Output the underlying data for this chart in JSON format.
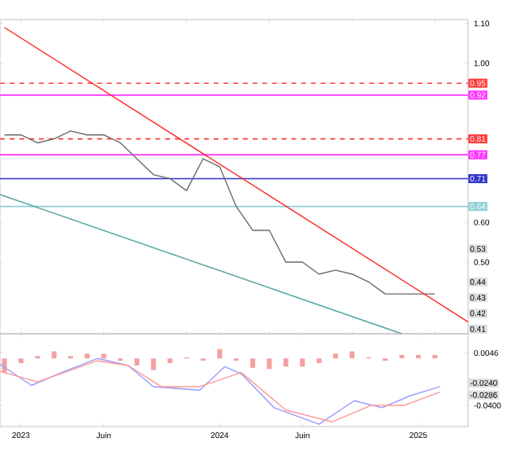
{
  "chart_data": [
    {
      "type": "line",
      "xlim": [
        "2022-11-23",
        "2025-04-01"
      ],
      "ylim": [
        0.32,
        1.11
      ],
      "yticks": [
        {
          "value": 1.1,
          "label": "1.10"
        },
        {
          "value": 1.0,
          "label": "1.00"
        },
        {
          "value": 0.6,
          "label": "0.60"
        },
        {
          "value": 0.5,
          "label": "0.50"
        }
      ],
      "tick_labels": "y",
      "series": [
        {
          "color": "#6b6b6b",
          "x": [
            "2022-12",
            "2023-01",
            "2023-02",
            "2023-03",
            "2023-04",
            "2023-05",
            "2023-06",
            "2023-07",
            "2023-08",
            "2023-09",
            "2023-10",
            "2023-11",
            "2023-12",
            "2024-01",
            "2024-02",
            "2024-03",
            "2024-04",
            "2024-05",
            "2024-06",
            "2024-07",
            "2024-08",
            "2024-09",
            "2024-10",
            "2024-11",
            "2024-12",
            "2025-01",
            "2025-02"
          ],
          "values": [
            0.82,
            0.82,
            0.8,
            0.81,
            0.83,
            0.82,
            0.82,
            0.8,
            0.76,
            0.72,
            0.71,
            0.68,
            0.76,
            0.74,
            0.64,
            0.58,
            0.58,
            0.5,
            0.5,
            0.47,
            0.48,
            0.47,
            0.45,
            0.42,
            0.42,
            0.42,
            0.42
          ]
        },
        {
          "color": "#ff2020",
          "x": [
            "2022-12",
            "2025-04"
          ],
          "values": [
            1.09,
            0.35
          ]
        },
        {
          "color": "#4fa3a0",
          "x": [
            "2022-11-23",
            "2024-12"
          ],
          "values": [
            0.67,
            0.32
          ]
        }
      ],
      "ref_lines": [
        {
          "axis": "y",
          "value": 0.95,
          "label": "0.95",
          "color": "#ff3b3b",
          "line_style": "dashed"
        },
        {
          "axis": "y",
          "value": 0.92,
          "label": "0.92",
          "color": "#ff33ff",
          "line_style": "solid"
        },
        {
          "axis": "y",
          "value": 0.81,
          "label": "0.81",
          "color": "#ff3b3b",
          "line_style": "dashed"
        },
        {
          "axis": "y",
          "value": 0.77,
          "label": "0.77",
          "color": "#ff33ff",
          "line_style": "solid"
        },
        {
          "axis": "y",
          "value": 0.71,
          "label": "0.71",
          "color": "#3333cc",
          "line_style": "solid"
        },
        {
          "axis": "y",
          "value": 0.64,
          "label": "0.64",
          "color": "#8fcfd6",
          "line_style": "solid"
        }
      ],
      "annotations": [
        "0.53",
        "0.44",
        "0.43",
        "0.42",
        "0.41"
      ]
    },
    {
      "type": "bar",
      "xlim": [
        "2022-11-23",
        "2025-04-01"
      ],
      "ylim": [
        -0.058,
        0.021
      ],
      "xticks": [
        {
          "value": "2023-01",
          "label": "2023"
        },
        {
          "value": "2023-06",
          "label": "Juin"
        },
        {
          "value": "2024-01",
          "label": "2024"
        },
        {
          "value": "2024-06",
          "label": "Juin"
        },
        {
          "value": "2025-01",
          "label": "2025"
        }
      ],
      "yticks": [
        {
          "value": 0.0046,
          "label": "0.0046"
        },
        {
          "value": -0.04,
          "label": "-0.0400"
        }
      ],
      "annotations": [
        "-0.0240",
        "-0.0286"
      ],
      "series": [
        {
          "type": "bar",
          "color": "#f4a0a0",
          "x": [
            "2022-12",
            "2023-01",
            "2023-02",
            "2023-03",
            "2023-04",
            "2023-05",
            "2023-06",
            "2023-07",
            "2023-08",
            "2023-09",
            "2023-10",
            "2023-11",
            "2023-12",
            "2024-01",
            "2024-02",
            "2024-03",
            "2024-04",
            "2024-05",
            "2024-06",
            "2024-07",
            "2024-08",
            "2024-09",
            "2024-10",
            "2024-11",
            "2024-12",
            "2025-01",
            "2025-02"
          ],
          "values": [
            -0.012,
            -0.004,
            0.002,
            0.006,
            0.002,
            0.004,
            0.004,
            -0.002,
            -0.006,
            -0.01,
            -0.004,
            0.001,
            -0.002,
            0.008,
            -0.002,
            -0.008,
            -0.009,
            -0.007,
            -0.007,
            -0.004,
            0.004,
            0.006,
            0.001,
            -0.002,
            0.003,
            0.003,
            0.003
          ]
        },
        {
          "type": "line",
          "color": "#9999ff",
          "x": [
            "2022-11-23",
            "2023-01-20",
            "2023-03-20",
            "2023-05-20",
            "2023-07-15",
            "2023-09-01",
            "2023-11-25",
            "2024-01-10",
            "2024-02-10",
            "2024-04-10",
            "2024-07-01",
            "2024-09-05",
            "2024-10-25",
            "2024-12-15",
            "2025-02-10"
          ],
          "values": [
            -0.005,
            -0.023,
            -0.011,
            0.0,
            -0.006,
            -0.024,
            -0.027,
            -0.007,
            -0.013,
            -0.042,
            -0.056,
            -0.036,
            -0.042,
            -0.032,
            -0.024
          ]
        },
        {
          "type": "line",
          "color": "#ff9999",
          "x": [
            "2022-11-23",
            "2023-02-01",
            "2023-05-20",
            "2023-07-15",
            "2023-09-15",
            "2023-11-25",
            "2024-02-10",
            "2024-05-01",
            "2024-07-25",
            "2024-10-05",
            "2024-12-05",
            "2025-02-10"
          ],
          "values": [
            -0.011,
            -0.02,
            -0.002,
            -0.006,
            -0.024,
            -0.024,
            -0.012,
            -0.044,
            -0.054,
            -0.04,
            -0.04,
            -0.0286
          ]
        }
      ]
    }
  ]
}
